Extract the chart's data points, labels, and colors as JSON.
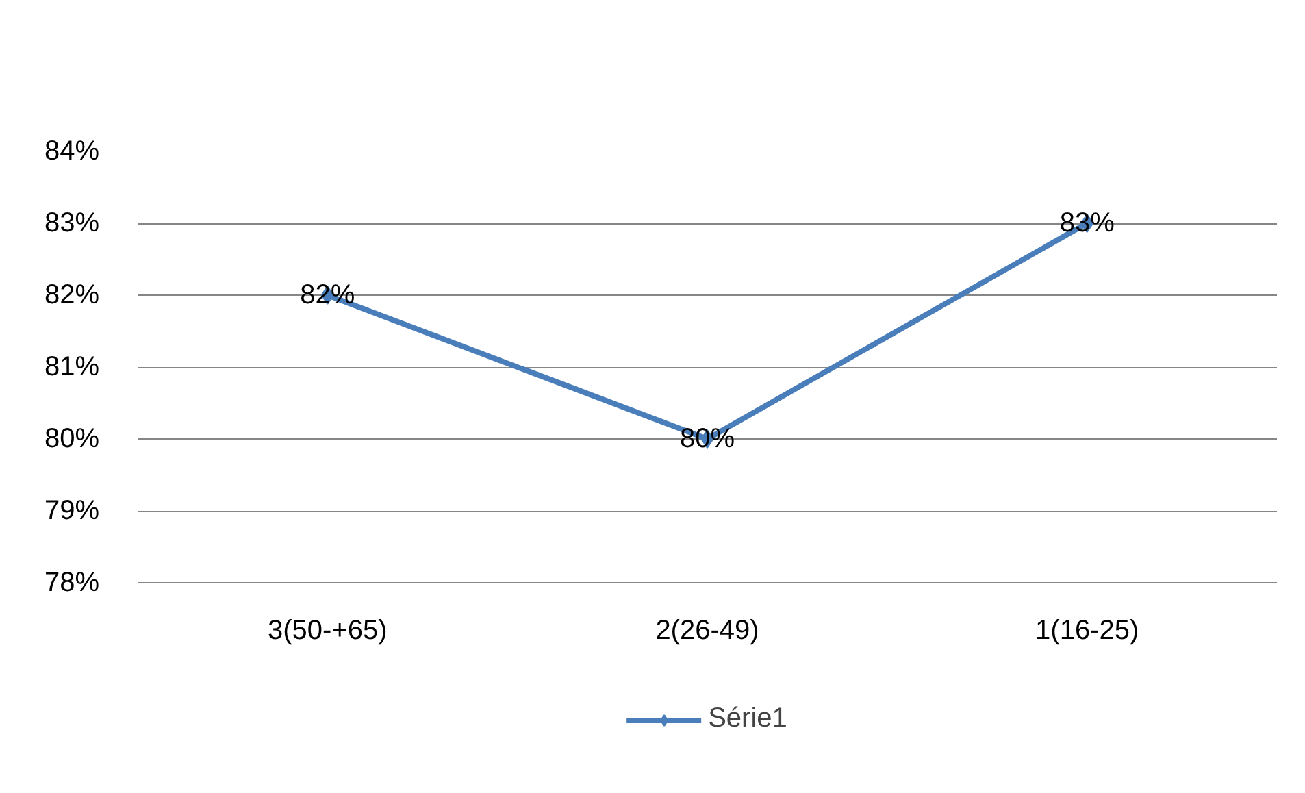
{
  "chart_data": {
    "type": "line",
    "categories": [
      "3(50-+65)",
      "2(26-49)",
      "1(16-25)"
    ],
    "series": [
      {
        "name": "Série1",
        "color": "#4a7ebb",
        "values": [
          82,
          80,
          83
        ],
        "value_labels": [
          "82%",
          "80%",
          "83%"
        ]
      }
    ],
    "ylim": [
      78,
      84
    ],
    "yticks": [
      {
        "value": 78,
        "label": "78%"
      },
      {
        "value": 79,
        "label": "79%"
      },
      {
        "value": 80,
        "label": "80%"
      },
      {
        "value": 81,
        "label": "81%"
      },
      {
        "value": 82,
        "label": "82%"
      },
      {
        "value": 83,
        "label": "83%"
      },
      {
        "value": 84,
        "label": "84%"
      }
    ],
    "grid": "y",
    "legend": "bottom",
    "marker": "diamond",
    "line_style": "solid"
  }
}
